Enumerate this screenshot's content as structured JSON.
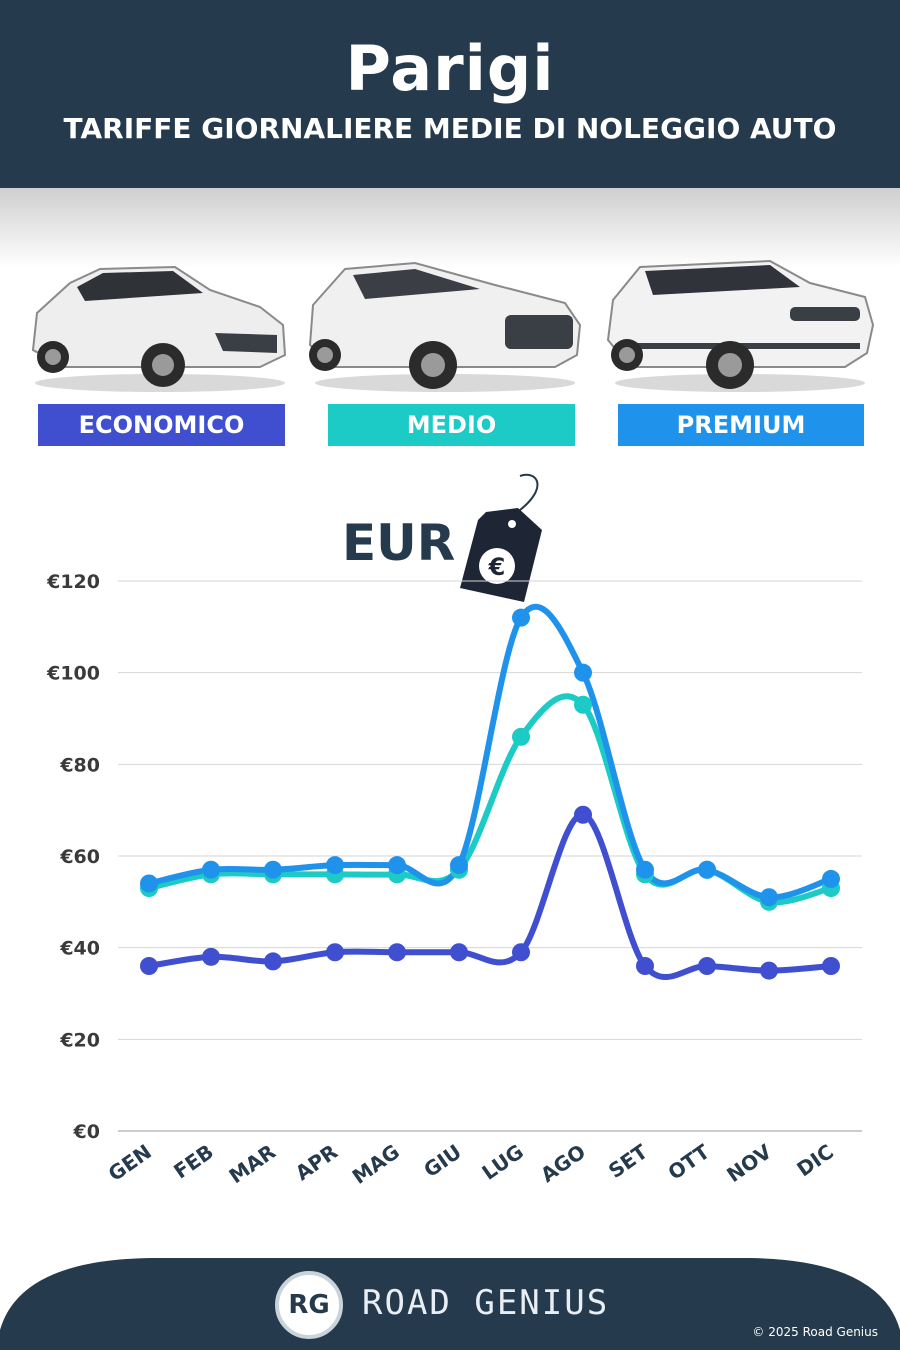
{
  "header": {
    "city": "Parigi",
    "subtitle": "TARIFFE GIORNALIERE MEDIE DI NOLEGGIO AUTO"
  },
  "categories": [
    {
      "label": "ECONOMICO",
      "color": "#3f4fd0"
    },
    {
      "label": "MEDIO",
      "color": "#1ccac6"
    },
    {
      "label": "PREMIUM",
      "color": "#1f93ec"
    }
  ],
  "currency_label": "EUR",
  "chart_data": {
    "type": "line",
    "categories": [
      "GEN",
      "FEB",
      "MAR",
      "APR",
      "MAG",
      "GIU",
      "LUG",
      "AGO",
      "SET",
      "OTT",
      "NOV",
      "DIC"
    ],
    "series": [
      {
        "name": "ECONOMICO",
        "color": "#3f4fd0",
        "values": [
          36,
          38,
          37,
          39,
          39,
          39,
          39,
          69,
          36,
          36,
          35,
          36
        ]
      },
      {
        "name": "MEDIO",
        "color": "#1ccac6",
        "values": [
          53,
          56,
          56,
          56,
          56,
          57,
          86,
          93,
          56,
          57,
          50,
          53
        ]
      },
      {
        "name": "PREMIUM",
        "color": "#1f93ec",
        "values": [
          54,
          57,
          57,
          58,
          58,
          58,
          112,
          100,
          57,
          57,
          51,
          55
        ]
      }
    ],
    "yticks": [
      "€0",
      "€20",
      "€40",
      "€60",
      "€80",
      "€100",
      "€120"
    ],
    "ylim": [
      0,
      120
    ],
    "grid": true
  },
  "footer": {
    "brand": "ROAD GENIUS",
    "logo": "RG",
    "copyright": "© 2025 Road Genius"
  }
}
